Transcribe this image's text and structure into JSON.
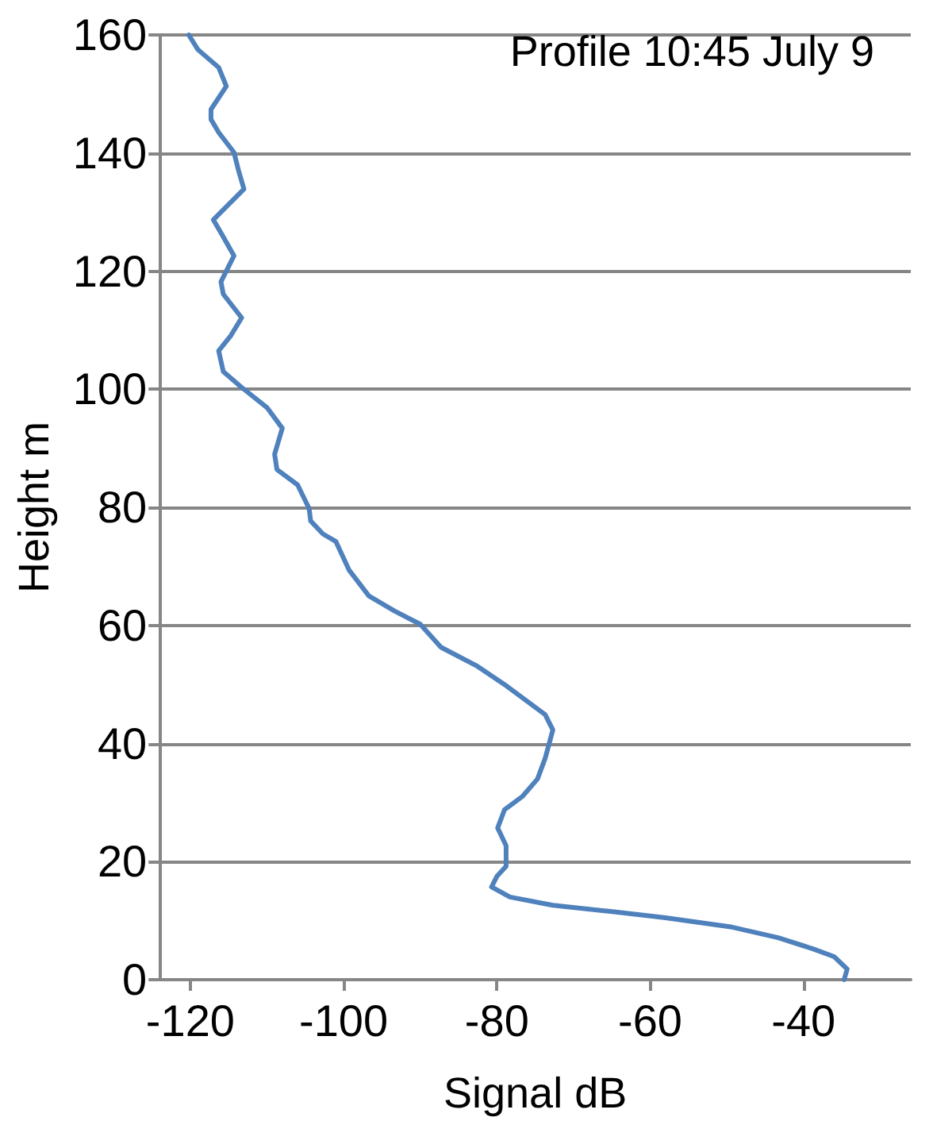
{
  "chart_data": {
    "type": "line",
    "title": "Profile 10:45 July 9",
    "xlabel": "Signal dB",
    "ylabel": "Height m",
    "x": [
      -34.7,
      -34.3,
      -36,
      -38.7,
      -43.3,
      -49.3,
      -58,
      -64.7,
      -72.7,
      -78.3,
      -80.7,
      -80,
      -78.8,
      -78.8,
      -79.9,
      -79,
      -76.7,
      -74.7,
      -73.7,
      -72.7,
      -73.7,
      -78.7,
      -82.7,
      -87.3,
      -90,
      -93.3,
      -96.7,
      -99.3,
      -101,
      -102.7,
      -104.3,
      -104.5,
      -106,
      -108.7,
      -109,
      -108,
      -110,
      -113.3,
      -115.7,
      -116.3,
      -114.7,
      -113.3,
      -115.7,
      -116,
      -114.3,
      -116,
      -117,
      -115.3,
      -113,
      -113.7,
      -114.3,
      -116.3,
      -117.3,
      -117.3,
      -115.3,
      -116.3,
      -119,
      -120.2
    ],
    "series": [
      {
        "color": "#4f81bd",
        "values": [
          0,
          1.8,
          3.9,
          5.2,
          7.1,
          8.9,
          10.5,
          11.5,
          12.6,
          14,
          15.7,
          17.5,
          19.2,
          22.7,
          25.7,
          28.8,
          31,
          34,
          37.5,
          42.3,
          44.9,
          49.7,
          53.2,
          56.3,
          60.2,
          62.4,
          65,
          69.4,
          74.2,
          75.5,
          77.7,
          79.8,
          83.8,
          86.4,
          89,
          93.4,
          96.9,
          100.3,
          103,
          106.5,
          109.1,
          112.1,
          116.1,
          118.2,
          122.6,
          126.5,
          128.7,
          130.9,
          133.9,
          137,
          140.1,
          143.5,
          145.7,
          147.4,
          151.3,
          154.5,
          157.5,
          160
        ]
      }
    ],
    "xlim": [
      -124,
      -26
    ],
    "xticks": [
      -120,
      -100,
      -80,
      -60,
      -40
    ],
    "ylim": [
      0,
      160
    ],
    "yticks": [
      0,
      20,
      40,
      60,
      80,
      100,
      120,
      140,
      160
    ],
    "grid": "y",
    "marker": "none",
    "line_style": "solid"
  }
}
